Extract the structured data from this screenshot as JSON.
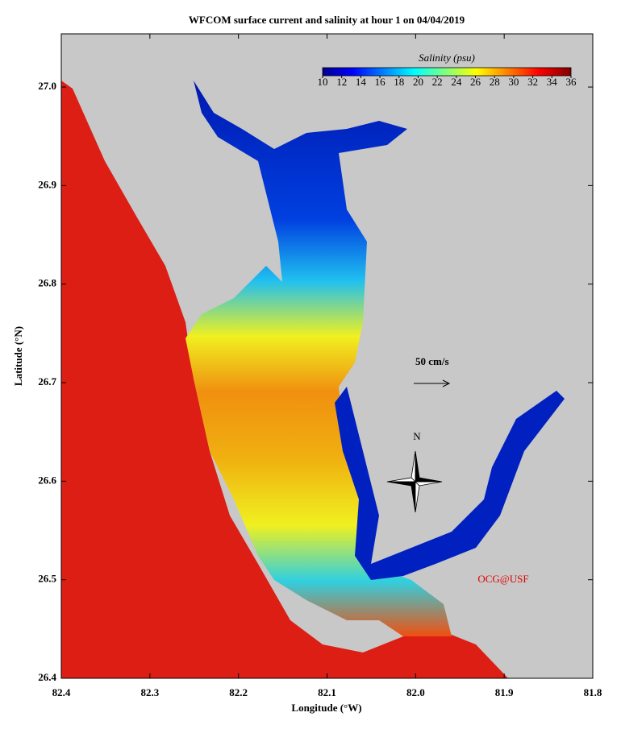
{
  "title": "WFCOM surface current and salinity at hour 1 on 04/04/2019",
  "x_axis": {
    "label": "Longitude (°W)",
    "lim": [
      82.4,
      81.8
    ],
    "ticks": [
      82.4,
      82.3,
      82.2,
      82.1,
      {
        "value": 82,
        "label": "82.0"
      },
      81.9,
      81.8
    ]
  },
  "y_axis": {
    "label": "Latitude (°N)",
    "lim": [
      26.4,
      27.054
    ],
    "ticks": [
      26.4,
      26.5,
      26.6,
      26.7,
      26.8,
      26.9,
      {
        "value": 27,
        "label": "27.0"
      }
    ]
  },
  "colorbar": {
    "title": "Salinity (psu)",
    "lim": [
      10,
      36
    ],
    "ticks": [
      10,
      12,
      14,
      16,
      18,
      20,
      22,
      24,
      26,
      28,
      30,
      32,
      34,
      36
    ]
  },
  "annotations": {
    "scale_label": "50 cm/s",
    "north": "N",
    "credit": "OCG@USF"
  }
}
